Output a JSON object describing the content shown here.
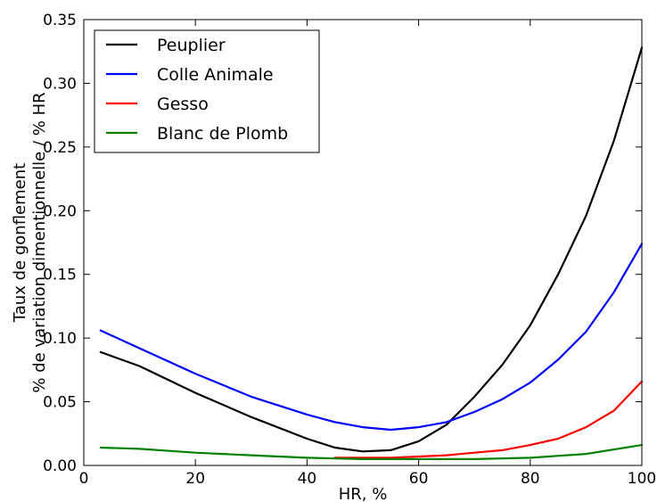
{
  "chart_data": {
    "type": "line",
    "title": "",
    "xlabel": "HR, %",
    "ylabel_lines": [
      "Taux de gonflement",
      "% de variation dimentionnelle / % HR"
    ],
    "xlim": [
      0,
      100
    ],
    "ylim": [
      0,
      0.35
    ],
    "x_ticks": [
      "0",
      "20",
      "40",
      "60",
      "80",
      "100"
    ],
    "y_ticks": [
      "0.00",
      "0.05",
      "0.10",
      "0.15",
      "0.20",
      "0.25",
      "0.30",
      "0.35"
    ],
    "grid": false,
    "legend_position": "top-left",
    "series": [
      {
        "name": "Peuplier",
        "color": "#000000",
        "points": [
          [
            3,
            0.089
          ],
          [
            10,
            0.078
          ],
          [
            20,
            0.057
          ],
          [
            30,
            0.038
          ],
          [
            40,
            0.021
          ],
          [
            45,
            0.014
          ],
          [
            50,
            0.011
          ],
          [
            55,
            0.012
          ],
          [
            60,
            0.019
          ],
          [
            65,
            0.032
          ],
          [
            70,
            0.054
          ],
          [
            75,
            0.079
          ],
          [
            80,
            0.11
          ],
          [
            85,
            0.15
          ],
          [
            90,
            0.196
          ],
          [
            95,
            0.255
          ],
          [
            100,
            0.328
          ]
        ]
      },
      {
        "name": "Colle Animale",
        "color": "#0000ff",
        "points": [
          [
            3,
            0.106
          ],
          [
            10,
            0.092
          ],
          [
            20,
            0.072
          ],
          [
            30,
            0.054
          ],
          [
            40,
            0.04
          ],
          [
            45,
            0.034
          ],
          [
            50,
            0.03
          ],
          [
            55,
            0.028
          ],
          [
            60,
            0.03
          ],
          [
            65,
            0.034
          ],
          [
            70,
            0.042
          ],
          [
            75,
            0.052
          ],
          [
            80,
            0.065
          ],
          [
            85,
            0.083
          ],
          [
            90,
            0.105
          ],
          [
            95,
            0.136
          ],
          [
            100,
            0.174
          ]
        ]
      },
      {
        "name": "Gesso",
        "color": "#ff0000",
        "points": [
          [
            45,
            0.006
          ],
          [
            50,
            0.006
          ],
          [
            55,
            0.006
          ],
          [
            60,
            0.007
          ],
          [
            65,
            0.008
          ],
          [
            70,
            0.01
          ],
          [
            75,
            0.012
          ],
          [
            80,
            0.016
          ],
          [
            85,
            0.021
          ],
          [
            90,
            0.03
          ],
          [
            95,
            0.043
          ],
          [
            100,
            0.066
          ]
        ]
      },
      {
        "name": "Blanc de Plomb",
        "color": "#008000",
        "points": [
          [
            3,
            0.014
          ],
          [
            10,
            0.013
          ],
          [
            20,
            0.01
          ],
          [
            30,
            0.008
          ],
          [
            40,
            0.006
          ],
          [
            50,
            0.005
          ],
          [
            60,
            0.005
          ],
          [
            70,
            0.005
          ],
          [
            80,
            0.006
          ],
          [
            90,
            0.009
          ],
          [
            100,
            0.016
          ]
        ]
      }
    ]
  }
}
